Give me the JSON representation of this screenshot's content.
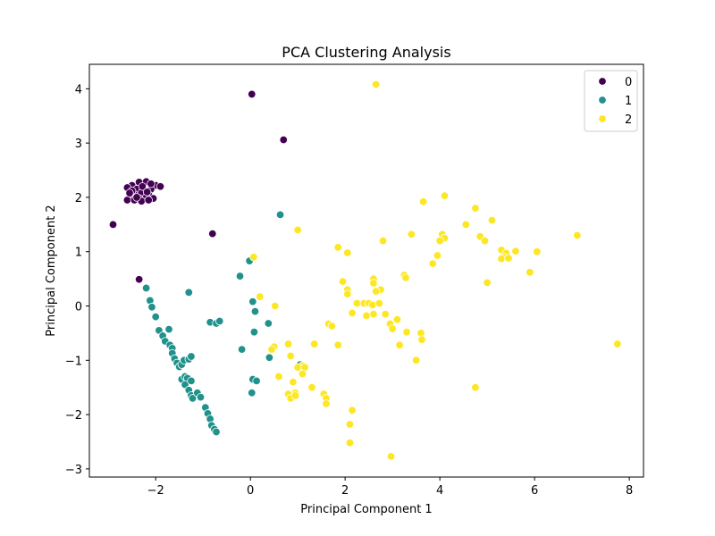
{
  "chart_data": {
    "type": "scatter",
    "title": "PCA Clustering Analysis",
    "xlabel": "Principal Component 1",
    "ylabel": "Principal Component 2",
    "xlim": [
      -3.4,
      8.3
    ],
    "ylim": [
      -3.15,
      4.45
    ],
    "xticks": [
      -2,
      0,
      2,
      4,
      6,
      8
    ],
    "yticks": [
      -3,
      -2,
      -1,
      0,
      1,
      2,
      3,
      4
    ],
    "xtick_labels": [
      "−2",
      "0",
      "2",
      "4",
      "6",
      "8"
    ],
    "ytick_labels": [
      "−3",
      "−2",
      "−1",
      "0",
      "1",
      "2",
      "3",
      "4"
    ],
    "grid": false,
    "legend_position": "top-right",
    "series": [
      {
        "name": "0",
        "color": "#440154",
        "points": [
          [
            0.03,
            3.9
          ],
          [
            0.7,
            3.06
          ],
          [
            -0.8,
            1.33
          ],
          [
            -2.9,
            1.5
          ],
          [
            -2.35,
            0.49
          ],
          [
            -2.35,
            2.28
          ],
          [
            -2.2,
            2.29
          ],
          [
            -2.5,
            2.22
          ],
          [
            -2.0,
            2.22
          ],
          [
            -2.6,
            2.18
          ],
          [
            -1.9,
            2.2
          ],
          [
            -2.1,
            2.15
          ],
          [
            -2.4,
            2.15
          ],
          [
            -2.25,
            2.12
          ],
          [
            -2.5,
            2.1
          ],
          [
            -2.3,
            2.08
          ],
          [
            -2.15,
            2.05
          ],
          [
            -2.45,
            2.05
          ],
          [
            -2.55,
            2.02
          ],
          [
            -2.2,
            2.0
          ],
          [
            -2.35,
            1.98
          ],
          [
            -2.05,
            1.98
          ],
          [
            -2.6,
            1.95
          ],
          [
            -2.45,
            1.95
          ],
          [
            -2.3,
            1.93
          ],
          [
            -2.15,
            1.95
          ],
          [
            -2.5,
            2.12
          ],
          [
            -2.28,
            2.2
          ],
          [
            -2.4,
            2.0
          ],
          [
            -2.18,
            2.1
          ],
          [
            -2.1,
            2.25
          ],
          [
            -2.55,
            2.08
          ]
        ]
      },
      {
        "name": "1",
        "color": "#21918c",
        "points": [
          [
            0.63,
            1.68
          ],
          [
            -0.02,
            0.83
          ],
          [
            -0.22,
            0.55
          ],
          [
            -2.2,
            0.33
          ],
          [
            -2.12,
            0.1
          ],
          [
            -2.08,
            -0.02
          ],
          [
            -2.0,
            -0.2
          ],
          [
            -1.93,
            -0.45
          ],
          [
            -1.85,
            -0.55
          ],
          [
            -1.8,
            -0.65
          ],
          [
            -1.7,
            -0.72
          ],
          [
            -1.65,
            -0.78
          ],
          [
            -1.72,
            -0.43
          ],
          [
            -1.65,
            -0.87
          ],
          [
            -1.6,
            -0.97
          ],
          [
            -1.55,
            -1.05
          ],
          [
            -1.5,
            -1.12
          ],
          [
            -1.45,
            -1.08
          ],
          [
            -1.4,
            -1.0
          ],
          [
            -1.3,
            -0.98
          ],
          [
            -1.25,
            -0.93
          ],
          [
            -1.45,
            -1.35
          ],
          [
            -1.38,
            -1.3
          ],
          [
            -1.33,
            -1.33
          ],
          [
            -1.38,
            -1.45
          ],
          [
            -1.3,
            -1.55
          ],
          [
            -1.25,
            -1.65
          ],
          [
            -1.22,
            -1.7
          ],
          [
            -1.12,
            -1.6
          ],
          [
            -1.05,
            -1.68
          ],
          [
            -1.25,
            -1.38
          ],
          [
            -0.95,
            -1.87
          ],
          [
            -0.9,
            -1.98
          ],
          [
            -0.85,
            -2.08
          ],
          [
            -0.82,
            -2.2
          ],
          [
            -0.76,
            -2.27
          ],
          [
            -0.72,
            -2.32
          ],
          [
            -1.3,
            0.25
          ],
          [
            -0.85,
            -0.3
          ],
          [
            -0.72,
            -0.32
          ],
          [
            -0.65,
            -0.28
          ],
          [
            -0.18,
            -0.8
          ],
          [
            0.05,
            0.08
          ],
          [
            0.1,
            -0.1
          ],
          [
            0.38,
            -0.32
          ],
          [
            0.08,
            -0.48
          ],
          [
            0.4,
            -0.95
          ],
          [
            0.05,
            -1.35
          ],
          [
            0.13,
            -1.38
          ],
          [
            0.03,
            -1.6
          ],
          [
            1.05,
            -1.08
          ]
        ]
      },
      {
        "name": "2",
        "color": "#fde725",
        "points": [
          [
            2.65,
            4.08
          ],
          [
            4.1,
            2.03
          ],
          [
            3.65,
            1.92
          ],
          [
            4.75,
            1.8
          ],
          [
            5.1,
            1.58
          ],
          [
            4.55,
            1.5
          ],
          [
            4.05,
            1.32
          ],
          [
            4.1,
            1.25
          ],
          [
            4.0,
            1.2
          ],
          [
            4.85,
            1.28
          ],
          [
            4.95,
            1.2
          ],
          [
            6.9,
            1.3
          ],
          [
            5.3,
            1.03
          ],
          [
            5.6,
            1.01
          ],
          [
            6.05,
            1.0
          ],
          [
            5.4,
            0.97
          ],
          [
            5.35,
            0.9
          ],
          [
            5.3,
            0.87
          ],
          [
            5.45,
            0.88
          ],
          [
            3.95,
            0.93
          ],
          [
            3.85,
            0.78
          ],
          [
            5.9,
            0.62
          ],
          [
            5.0,
            0.43
          ],
          [
            3.4,
            1.32
          ],
          [
            2.8,
            1.2
          ],
          [
            1.85,
            1.08
          ],
          [
            2.05,
            0.98
          ],
          [
            1.0,
            1.4
          ],
          [
            0.07,
            0.9
          ],
          [
            1.95,
            0.45
          ],
          [
            2.05,
            0.3
          ],
          [
            2.05,
            0.22
          ],
          [
            2.6,
            0.5
          ],
          [
            2.6,
            0.42
          ],
          [
            2.75,
            0.3
          ],
          [
            2.65,
            0.27
          ],
          [
            3.25,
            0.57
          ],
          [
            3.28,
            0.52
          ],
          [
            0.2,
            0.17
          ],
          [
            0.52,
            0.0
          ],
          [
            2.25,
            0.05
          ],
          [
            2.4,
            0.05
          ],
          [
            2.15,
            -0.13
          ],
          [
            2.5,
            0.05
          ],
          [
            2.58,
            0.02
          ],
          [
            2.72,
            0.05
          ],
          [
            2.45,
            -0.18
          ],
          [
            2.6,
            -0.15
          ],
          [
            2.85,
            -0.15
          ],
          [
            3.1,
            -0.25
          ],
          [
            2.95,
            -0.33
          ],
          [
            3.0,
            -0.42
          ],
          [
            1.65,
            -0.33
          ],
          [
            1.72,
            -0.37
          ],
          [
            3.3,
            -0.48
          ],
          [
            3.6,
            -0.5
          ],
          [
            3.62,
            -0.62
          ],
          [
            1.35,
            -0.7
          ],
          [
            1.85,
            -0.72
          ],
          [
            3.15,
            -0.72
          ],
          [
            0.5,
            -0.75
          ],
          [
            0.45,
            -0.8
          ],
          [
            0.8,
            -0.7
          ],
          [
            0.85,
            -0.92
          ],
          [
            3.5,
            -1.0
          ],
          [
            1.1,
            -1.1
          ],
          [
            1.0,
            -1.13
          ],
          [
            1.15,
            -1.13
          ],
          [
            1.1,
            -1.25
          ],
          [
            0.6,
            -1.3
          ],
          [
            0.9,
            -1.4
          ],
          [
            1.3,
            -1.5
          ],
          [
            0.8,
            -1.62
          ],
          [
            0.95,
            -1.6
          ],
          [
            0.85,
            -1.7
          ],
          [
            0.95,
            -1.65
          ],
          [
            1.55,
            -1.62
          ],
          [
            1.6,
            -1.7
          ],
          [
            1.6,
            -1.8
          ],
          [
            4.75,
            -1.5
          ],
          [
            2.15,
            -1.92
          ],
          [
            2.1,
            -2.18
          ],
          [
            2.1,
            -2.52
          ],
          [
            2.97,
            -2.77
          ],
          [
            7.75,
            -0.7
          ]
        ]
      }
    ]
  }
}
